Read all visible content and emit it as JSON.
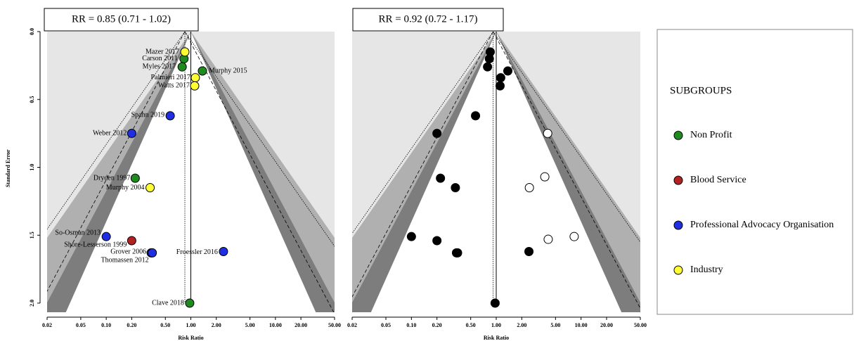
{
  "chart_data": [
    {
      "type": "funnel",
      "annotation": "RR = 0.85 (0.71 - 1.02)",
      "estimate": 0.85,
      "xlabel": "Risk Ratio",
      "ylabel": "Standard Error",
      "log_x": true,
      "y_inverted": true,
      "xlim": [
        0.02,
        50
      ],
      "xticks": [
        0.02,
        0.05,
        {
          "value": 0.1,
          "label": "0.10"
        },
        {
          "value": 0.2,
          "label": "0.20"
        },
        {
          "value": 0.5,
          "label": "0.50"
        },
        {
          "value": 1,
          "label": "1.00"
        },
        {
          "value": 2,
          "label": "2.00"
        },
        {
          "value": 5,
          "label": "5.00"
        },
        {
          "value": 10,
          "label": "10.00"
        },
        {
          "value": 20,
          "label": "20.00"
        },
        {
          "value": 50,
          "label": "50.00"
        }
      ],
      "ylim": [
        0,
        2
      ],
      "yticks": [
        {
          "value": 0,
          "label": "0.0"
        },
        0.5,
        {
          "value": 1,
          "label": "1.0"
        },
        1.5,
        {
          "value": 2,
          "label": "2.0"
        }
      ],
      "legend_title": "SUBGROUPS",
      "series": [
        {
          "name": "Non Profit",
          "color": "#1f8a1f",
          "x": [
            0.83,
            0.79,
            1.37,
            0.22,
            0.97
          ],
          "values": [
            0.2,
            0.26,
            0.29,
            1.08,
            2.0
          ],
          "labels": [
            "Carson 2011",
            "Myles 2017",
            "Murphy 2015",
            "Dryden 1997",
            "Clave 2018"
          ]
        },
        {
          "name": "Blood Service",
          "color": "#b22222",
          "x": [
            0.2
          ],
          "values": [
            1.54
          ],
          "labels": [
            "Shore-Lesserson 1999"
          ]
        },
        {
          "name": "Professional Advocacy Organisation",
          "color": "#1f2ee0",
          "x": [
            0.57,
            0.2,
            0.1,
            0.34,
            0.35,
            2.43
          ],
          "values": [
            0.62,
            0.75,
            1.51,
            1.63,
            1.63,
            1.62
          ],
          "labels": [
            "Spahn 2019",
            "Weber 2012",
            "So-Osman 2013",
            "Grover 2006",
            "Thomassen 2012",
            "Froessler 2016"
          ]
        },
        {
          "name": "Industry",
          "color": "#ffff33",
          "x": [
            0.85,
            1.13,
            1.11,
            0.33
          ],
          "values": [
            0.15,
            0.34,
            0.4,
            1.15
          ],
          "labels": [
            "Mazer 2017",
            "Palmieri 2017",
            "Watts 2017",
            "Murphy 2004"
          ]
        }
      ]
    },
    {
      "type": "funnel",
      "annotation": "RR = 0.92 (0.72 - 1.17)",
      "estimate": 0.92,
      "xlabel": "Risk Ratio",
      "log_x": true,
      "y_inverted": true,
      "xlim": [
        0.02,
        50
      ],
      "xticks": [
        0.02,
        0.05,
        {
          "value": 0.1,
          "label": "0.10"
        },
        {
          "value": 0.2,
          "label": "0.20"
        },
        {
          "value": 0.5,
          "label": "0.50"
        },
        {
          "value": 1,
          "label": "1.00"
        },
        {
          "value": 2,
          "label": "2.00"
        },
        {
          "value": 5,
          "label": "5.00"
        },
        {
          "value": 10,
          "label": "10.00"
        },
        {
          "value": 20,
          "label": "20.00"
        },
        {
          "value": 50,
          "label": "50.00"
        }
      ],
      "ylim": [
        0,
        2
      ],
      "series": [
        {
          "color": "#000000",
          "filled": true,
          "x": [
            0.83,
            0.79,
            1.37,
            0.22,
            0.97,
            0.2,
            0.57,
            0.2,
            0.1,
            0.34,
            0.35,
            2.43,
            0.85,
            1.13,
            1.11,
            0.33
          ],
          "values": [
            0.2,
            0.26,
            0.29,
            1.08,
            2.0,
            1.54,
            0.62,
            0.75,
            1.51,
            1.63,
            1.63,
            1.62,
            0.15,
            0.34,
            0.4,
            1.15
          ]
        },
        {
          "color": "#000000",
          "filled": false,
          "x": [
            4.04,
            3.74,
            2.46,
            4.1,
            8.3
          ],
          "values": [
            0.75,
            1.07,
            1.15,
            1.53,
            1.51
          ]
        }
      ]
    }
  ]
}
